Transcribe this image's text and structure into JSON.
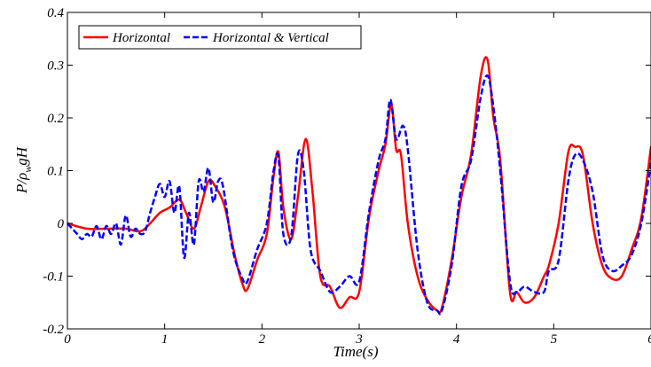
{
  "chart_data": {
    "type": "line",
    "title": "",
    "xlabel": "Time(s)",
    "ylabel_parts": {
      "p": "P/",
      "rho": "ρ",
      "sub": "w",
      "rest": "gH"
    },
    "xlim": [
      0,
      6
    ],
    "ylim": [
      -0.2,
      0.4
    ],
    "x_ticks": [
      0,
      1,
      2,
      3,
      4,
      5,
      6
    ],
    "x_tick_labels": [
      "0",
      "1",
      "2",
      "3",
      "4",
      "5",
      "6"
    ],
    "y_ticks": [
      -0.2,
      -0.1,
      0,
      0.1,
      0.2,
      0.3,
      0.4
    ],
    "y_tick_labels": [
      "-0.2",
      "-0.1",
      "0",
      "0.1",
      "0.2",
      "0.3",
      "0.4"
    ],
    "grid": false,
    "legend_position": "top-left",
    "series": [
      {
        "name": "Horizontal",
        "color": "#ff0000",
        "dash": "solid",
        "x": [
          0,
          0.2,
          0.4,
          0.6,
          0.75,
          0.85,
          0.95,
          1.05,
          1.15,
          1.22,
          1.3,
          1.37,
          1.45,
          1.52,
          1.62,
          1.72,
          1.8,
          1.85,
          1.95,
          2.05,
          2.12,
          2.17,
          2.22,
          2.3,
          2.37,
          2.45,
          2.52,
          2.6,
          2.7,
          2.8,
          2.9,
          3.0,
          3.1,
          3.2,
          3.27,
          3.33,
          3.38,
          3.43,
          3.5,
          3.6,
          3.7,
          3.8,
          3.85,
          3.95,
          4.05,
          4.15,
          4.25,
          4.32,
          4.38,
          4.45,
          4.55,
          4.62,
          4.7,
          4.8,
          4.9,
          4.95,
          5.05,
          5.15,
          5.22,
          5.3,
          5.4,
          5.5,
          5.6,
          5.7,
          5.8,
          5.9,
          6.0
        ],
        "y": [
          0.0,
          -0.01,
          -0.01,
          -0.01,
          -0.015,
          0.0,
          0.02,
          0.03,
          0.045,
          0.02,
          -0.01,
          0.03,
          0.08,
          0.07,
          0.03,
          -0.06,
          -0.115,
          -0.125,
          -0.07,
          -0.02,
          0.09,
          0.135,
          0.03,
          -0.03,
          0.05,
          0.16,
          0.06,
          -0.1,
          -0.12,
          -0.16,
          -0.14,
          -0.13,
          0.01,
          0.1,
          0.15,
          0.225,
          0.14,
          0.13,
          0.0,
          -0.1,
          -0.145,
          -0.165,
          -0.16,
          -0.07,
          0.05,
          0.13,
          0.28,
          0.31,
          0.2,
          0.12,
          -0.13,
          -0.13,
          -0.15,
          -0.14,
          -0.1,
          -0.08,
          0.0,
          0.135,
          0.145,
          0.13,
          0.0,
          -0.08,
          -0.105,
          -0.1,
          -0.05,
          0.01,
          0.145
        ]
      },
      {
        "name": "Horizontal & Vertical",
        "color": "#0000ff",
        "dash": "dashed",
        "x": [
          0,
          0.05,
          0.1,
          0.15,
          0.2,
          0.25,
          0.3,
          0.35,
          0.4,
          0.45,
          0.5,
          0.55,
          0.6,
          0.65,
          0.7,
          0.75,
          0.8,
          0.85,
          0.9,
          0.95,
          1.0,
          1.05,
          1.1,
          1.15,
          1.2,
          1.25,
          1.3,
          1.35,
          1.4,
          1.45,
          1.5,
          1.55,
          1.6,
          1.7,
          1.8,
          1.85,
          1.95,
          2.05,
          2.12,
          2.17,
          2.22,
          2.3,
          2.37,
          2.43,
          2.5,
          2.6,
          2.7,
          2.8,
          2.9,
          3.0,
          3.1,
          3.2,
          3.27,
          3.32,
          3.38,
          3.45,
          3.5,
          3.6,
          3.7,
          3.8,
          3.85,
          3.95,
          4.05,
          4.15,
          4.25,
          4.32,
          4.38,
          4.45,
          4.55,
          4.62,
          4.7,
          4.8,
          4.9,
          4.95,
          5.05,
          5.15,
          5.22,
          5.3,
          5.4,
          5.5,
          5.6,
          5.7,
          5.8,
          5.9,
          6.0
        ],
        "y": [
          0.0,
          -0.01,
          -0.02,
          -0.03,
          -0.02,
          -0.025,
          -0.005,
          -0.03,
          -0.005,
          -0.02,
          0.0,
          -0.04,
          0.015,
          -0.025,
          -0.01,
          -0.02,
          -0.015,
          0.02,
          0.05,
          0.075,
          0.05,
          0.08,
          0.02,
          0.07,
          -0.065,
          0.02,
          -0.04,
          0.08,
          0.06,
          0.105,
          0.04,
          0.08,
          0.07,
          -0.05,
          -0.105,
          -0.11,
          -0.05,
          0.0,
          0.1,
          0.125,
          -0.02,
          -0.025,
          0.13,
          0.1,
          -0.05,
          -0.09,
          -0.13,
          -0.12,
          -0.1,
          -0.11,
          0.02,
          0.12,
          0.16,
          0.235,
          0.16,
          0.185,
          0.14,
          -0.05,
          -0.15,
          -0.165,
          -0.165,
          -0.08,
          0.07,
          0.12,
          0.24,
          0.28,
          0.22,
          0.1,
          -0.11,
          -0.13,
          -0.12,
          -0.13,
          -0.13,
          -0.09,
          -0.07,
          0.08,
          0.13,
          0.12,
          0.06,
          -0.06,
          -0.09,
          -0.08,
          -0.06,
          0.0,
          0.115
        ]
      }
    ]
  }
}
